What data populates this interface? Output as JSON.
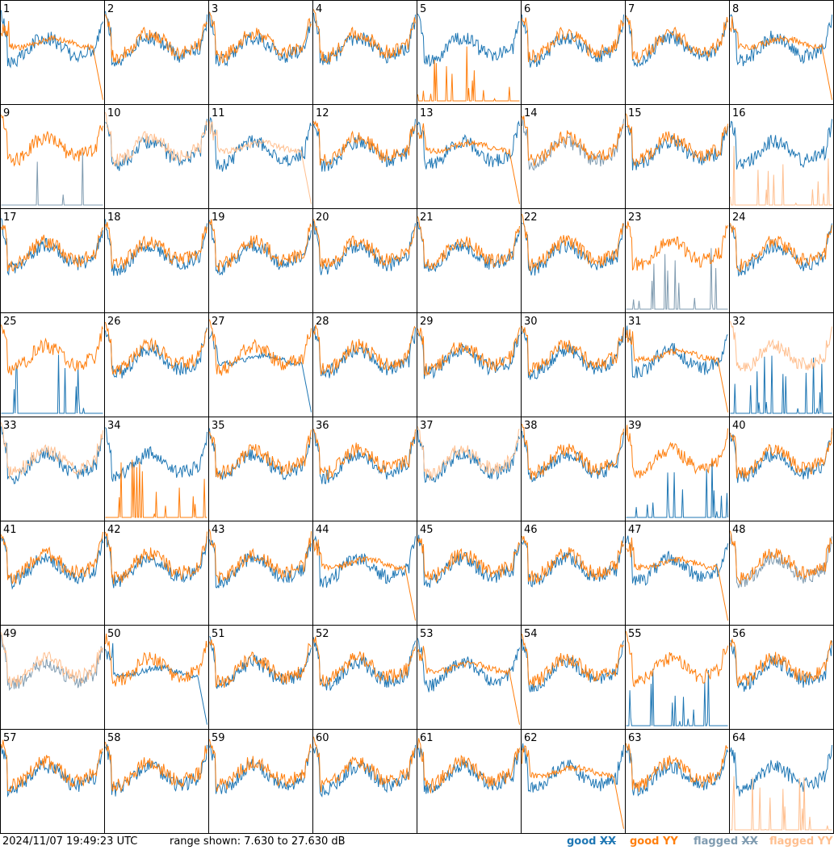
{
  "footer": {
    "timestamp": "2024/11/07 19:49:23 UTC",
    "range_label": "range shown: 7.630 to 27.630 dB",
    "legend": {
      "good_prefix": "good ",
      "good_xx": "XX",
      "good_yy": "good YY",
      "flagged_prefix": "flagged ",
      "flagged_xx": "XX",
      "flagged_yy": "flagged YY"
    }
  },
  "colors": {
    "good_xx": "#1f77b4",
    "good_yy": "#ff7f0e",
    "flagged_xx": "#7f9bb0",
    "flagged_yy": "#ffbf8f"
  },
  "chart_data": {
    "type": "line",
    "description_units": "dB",
    "ylim": [
      7.63,
      27.63
    ],
    "grid": "8x8 small multiples",
    "panels": [
      {
        "id": "1",
        "xx": "good",
        "yy": "good",
        "yy_profile": "dropoff"
      },
      {
        "id": "2",
        "xx": "good",
        "yy": "good"
      },
      {
        "id": "3",
        "xx": "good",
        "yy": "good"
      },
      {
        "id": "4",
        "xx": "good",
        "yy": "good"
      },
      {
        "id": "5",
        "xx": "good",
        "yy": "good",
        "yy_profile": "spikes"
      },
      {
        "id": "6",
        "xx": "good",
        "yy": "good"
      },
      {
        "id": "7",
        "xx": "good",
        "yy": "good"
      },
      {
        "id": "8",
        "xx": "good",
        "yy": "good",
        "yy_profile": "dropoff"
      },
      {
        "id": "9",
        "xx": "flagged",
        "yy": "good",
        "xx_profile": "spikes"
      },
      {
        "id": "10",
        "xx": "good",
        "yy": "flagged"
      },
      {
        "id": "11",
        "xx": "good",
        "yy": "flagged",
        "yy_profile": "dropoff"
      },
      {
        "id": "12",
        "xx": "good",
        "yy": "good"
      },
      {
        "id": "13",
        "xx": "good",
        "yy": "good",
        "yy_profile": "dropoff"
      },
      {
        "id": "14",
        "xx": "flagged",
        "yy": "good"
      },
      {
        "id": "15",
        "xx": "good",
        "yy": "good"
      },
      {
        "id": "16",
        "xx": "good",
        "yy": "flagged",
        "yy_profile": "spikes"
      },
      {
        "id": "17",
        "xx": "good",
        "yy": "good"
      },
      {
        "id": "18",
        "xx": "good",
        "yy": "good"
      },
      {
        "id": "19",
        "xx": "good",
        "yy": "good"
      },
      {
        "id": "20",
        "xx": "good",
        "yy": "good"
      },
      {
        "id": "21",
        "xx": "good",
        "yy": "good"
      },
      {
        "id": "22",
        "xx": "good",
        "yy": "good"
      },
      {
        "id": "23",
        "xx": "flagged",
        "yy": "good",
        "xx_profile": "spikes"
      },
      {
        "id": "24",
        "xx": "good",
        "yy": "good"
      },
      {
        "id": "25",
        "xx": "good",
        "yy": "good",
        "xx_profile": "spikes"
      },
      {
        "id": "26",
        "xx": "good",
        "yy": "good"
      },
      {
        "id": "27",
        "xx": "good",
        "yy": "good",
        "xx_profile": "dropoff"
      },
      {
        "id": "28",
        "xx": "good",
        "yy": "good"
      },
      {
        "id": "29",
        "xx": "good",
        "yy": "good"
      },
      {
        "id": "30",
        "xx": "good",
        "yy": "good"
      },
      {
        "id": "31",
        "xx": "good",
        "yy": "good",
        "yy_profile": "dropoff"
      },
      {
        "id": "32",
        "xx": "good",
        "yy": "flagged",
        "xx_profile": "spikes"
      },
      {
        "id": "33",
        "xx": "good",
        "yy": "flagged"
      },
      {
        "id": "34",
        "xx": "good",
        "yy": "good",
        "yy_profile": "spikes"
      },
      {
        "id": "35",
        "xx": "good",
        "yy": "good"
      },
      {
        "id": "36",
        "xx": "good",
        "yy": "good"
      },
      {
        "id": "37",
        "xx": "good",
        "yy": "flagged"
      },
      {
        "id": "38",
        "xx": "good",
        "yy": "good"
      },
      {
        "id": "39",
        "xx": "good",
        "yy": "good",
        "xx_profile": "spikes"
      },
      {
        "id": "40",
        "xx": "good",
        "yy": "good"
      },
      {
        "id": "41",
        "xx": "good",
        "yy": "good"
      },
      {
        "id": "42",
        "xx": "good",
        "yy": "good"
      },
      {
        "id": "43",
        "xx": "good",
        "yy": "good"
      },
      {
        "id": "44",
        "xx": "good",
        "yy": "good",
        "yy_profile": "dropoff"
      },
      {
        "id": "45",
        "xx": "good",
        "yy": "good"
      },
      {
        "id": "46",
        "xx": "good",
        "yy": "good"
      },
      {
        "id": "47",
        "xx": "good",
        "yy": "good",
        "yy_profile": "dropoff"
      },
      {
        "id": "48",
        "xx": "flagged",
        "yy": "good"
      },
      {
        "id": "49",
        "xx": "flagged",
        "yy": "flagged"
      },
      {
        "id": "50",
        "xx": "good",
        "yy": "good",
        "xx_profile": "dropoff"
      },
      {
        "id": "51",
        "xx": "good",
        "yy": "good"
      },
      {
        "id": "52",
        "xx": "good",
        "yy": "good"
      },
      {
        "id": "53",
        "xx": "good",
        "yy": "good",
        "yy_profile": "dropoff"
      },
      {
        "id": "54",
        "xx": "good",
        "yy": "good"
      },
      {
        "id": "55",
        "xx": "good",
        "yy": "good",
        "xx_profile": "spikes"
      },
      {
        "id": "56",
        "xx": "good",
        "yy": "good"
      },
      {
        "id": "57",
        "xx": "good",
        "yy": "good"
      },
      {
        "id": "58",
        "xx": "good",
        "yy": "good"
      },
      {
        "id": "59",
        "xx": "good",
        "yy": "good"
      },
      {
        "id": "60",
        "xx": "good",
        "yy": "good"
      },
      {
        "id": "61",
        "xx": "good",
        "yy": "good"
      },
      {
        "id": "62",
        "xx": "good",
        "yy": "good",
        "yy_profile": "dropoff"
      },
      {
        "id": "63",
        "xx": "good",
        "yy": "good"
      },
      {
        "id": "64",
        "xx": "good",
        "yy": "flagged",
        "yy_profile": "spikes"
      }
    ]
  }
}
